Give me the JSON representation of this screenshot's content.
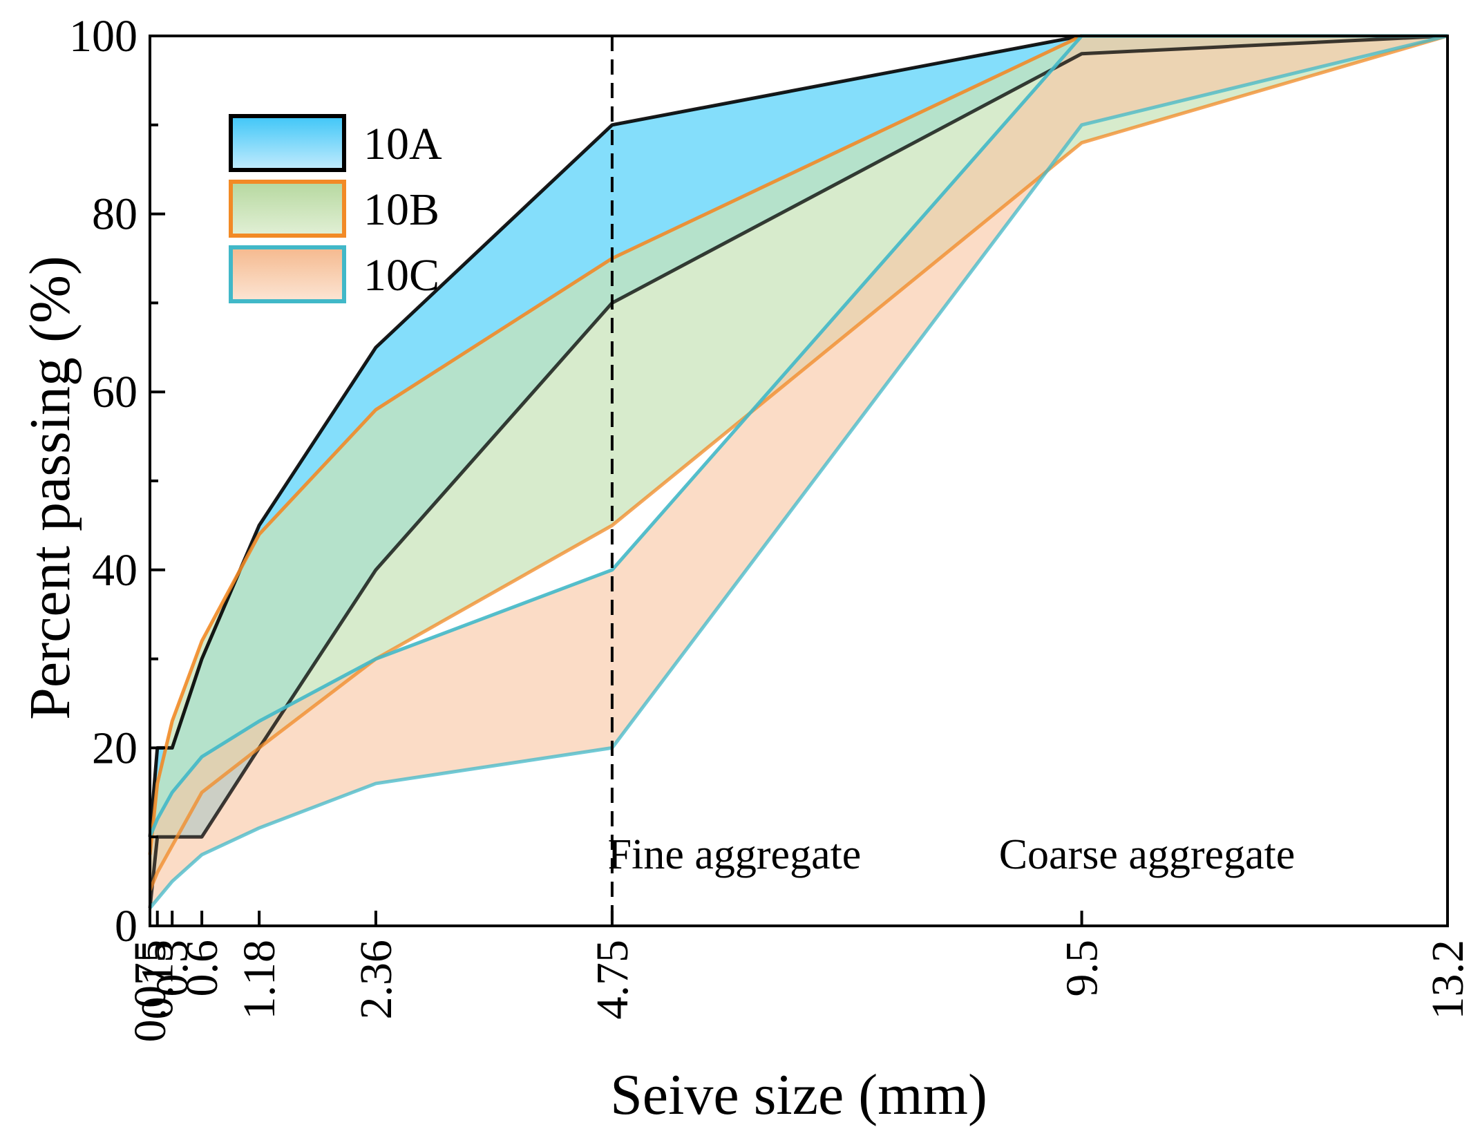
{
  "chart_data": {
    "type": "area",
    "title": "",
    "xlabel": "Seive size (mm)",
    "ylabel": "Percent passing (%)",
    "ylim": [
      0,
      100
    ],
    "y_ticks": [
      0,
      20,
      40,
      60,
      80,
      100
    ],
    "x": [
      0.075,
      0.15,
      0.3,
      0.6,
      1.18,
      2.36,
      4.75,
      9.5,
      13.2
    ],
    "x_tick_labels": [
      "0.075",
      "0.15",
      "0.3",
      "0.6",
      "1.18",
      "2.36",
      "4.75",
      "9.5",
      "13.2"
    ],
    "divider_x": 4.75,
    "legend_position": "top-left",
    "annotations": [
      {
        "text": "Fine aggregate",
        "side": "left"
      },
      {
        "text": "Coarse aggregate",
        "side": "right"
      }
    ],
    "series": [
      {
        "name": "10A",
        "upper": [
          10,
          20,
          20,
          30,
          45,
          65,
          90,
          100,
          100
        ],
        "lower": [
          2,
          10,
          10,
          10,
          20,
          40,
          70,
          98,
          100
        ],
        "fill": "#5bd3fa",
        "fill_opacity": 0.75,
        "stroke": "#000000",
        "legend_fill_top": "#3fc6f7",
        "legend_fill_bottom": "#c3ecfd"
      },
      {
        "name": "10B",
        "upper": [
          8,
          16,
          23,
          32,
          44,
          58,
          75,
          100,
          100
        ],
        "lower": [
          4,
          6,
          9,
          15,
          20,
          30,
          45,
          88,
          100
        ],
        "fill": "#c7e3b8",
        "fill_opacity": 0.72,
        "stroke": "#f28a26",
        "legend_fill_top": "#b6d89f",
        "legend_fill_bottom": "#e2f0d6"
      },
      {
        "name": "10C",
        "upper": [
          10,
          12,
          15,
          19,
          23,
          30,
          40,
          100,
          100
        ],
        "lower": [
          2,
          3,
          5,
          8,
          11,
          16,
          20,
          90,
          100
        ],
        "fill": "#f8c7a3",
        "fill_opacity": 0.62,
        "stroke": "#41b8c8",
        "legend_fill_top": "#f5b98e",
        "legend_fill_bottom": "#fce5d4"
      }
    ]
  }
}
